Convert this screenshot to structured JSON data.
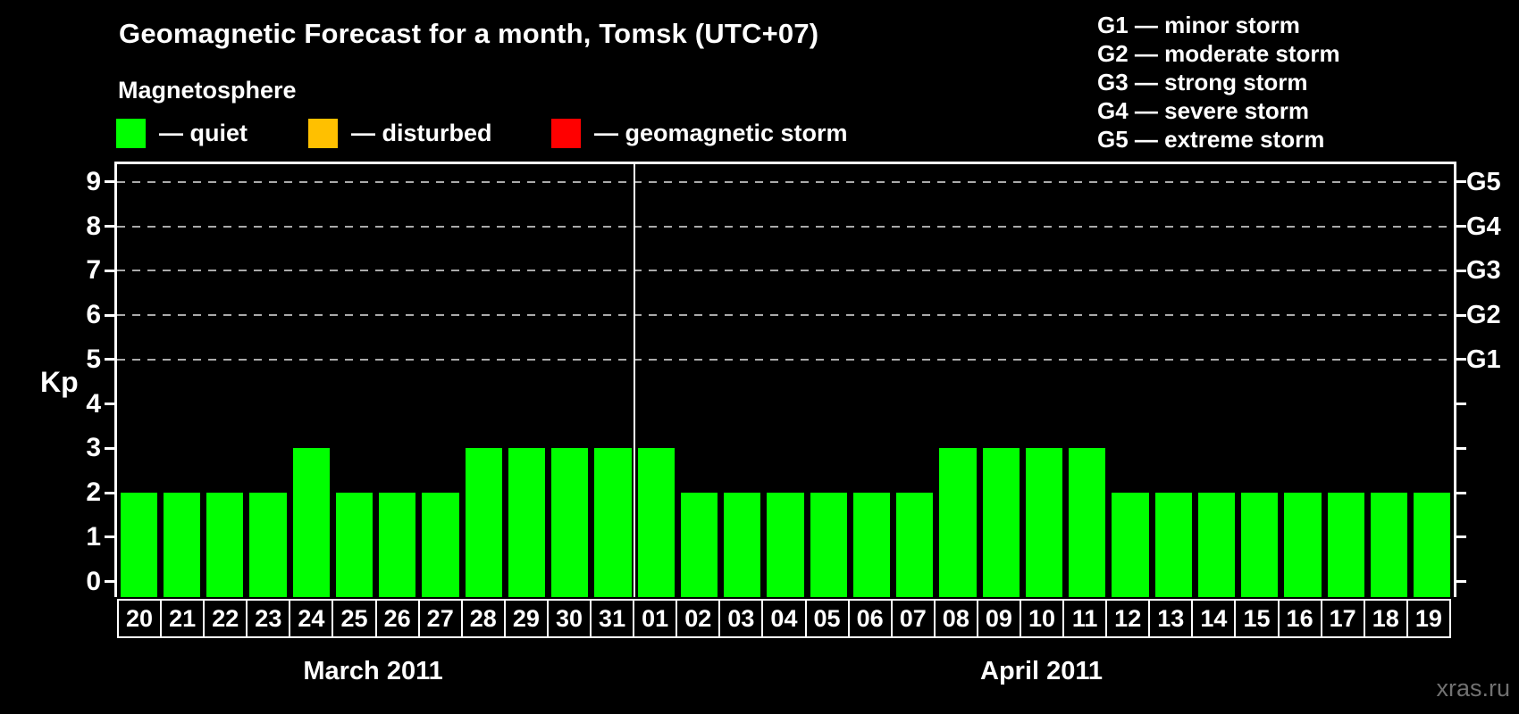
{
  "header": {
    "title": "Geomagnetic Forecast for a month, Tomsk (UTC+07)"
  },
  "legend": {
    "title": "Magnetosphere",
    "items": [
      {
        "name": "quiet",
        "label": "— quiet",
        "color": "#00ff00"
      },
      {
        "name": "disturbed",
        "label": "— disturbed",
        "color": "#ffc000"
      },
      {
        "name": "geomagnetic-storm",
        "label": "— geomagnetic storm",
        "color": "#ff0000"
      }
    ]
  },
  "g_scale_legend": {
    "items": [
      "G1 — minor storm",
      "G2 — moderate storm",
      "G3 — strong storm",
      "G4 — severe storm",
      "G5 — extreme storm"
    ]
  },
  "watermark": "xras.ru",
  "chart_data": {
    "type": "bar",
    "title": "Geomagnetic Forecast for a month, Tomsk (UTC+07)",
    "xlabel": "",
    "ylabel": "Kp",
    "ylim": [
      -0.35,
      9.4
    ],
    "y_ticks": [
      0,
      1,
      2,
      3,
      4,
      5,
      6,
      7,
      8,
      9
    ],
    "gridline_levels": [
      5,
      6,
      7,
      8,
      9
    ],
    "grid_on": true,
    "legend_position": "top-left",
    "bar_color": "#00ff00",
    "right_axis_labels": [
      {
        "kp": 5,
        "label": "G1"
      },
      {
        "kp": 6,
        "label": "G2"
      },
      {
        "kp": 7,
        "label": "G3"
      },
      {
        "kp": 8,
        "label": "G4"
      },
      {
        "kp": 9,
        "label": "G5"
      }
    ],
    "categories": [
      "20",
      "21",
      "22",
      "23",
      "24",
      "25",
      "26",
      "27",
      "28",
      "29",
      "30",
      "31",
      "01",
      "02",
      "03",
      "04",
      "05",
      "06",
      "07",
      "08",
      "09",
      "10",
      "11",
      "12",
      "13",
      "14",
      "15",
      "16",
      "17",
      "18",
      "19"
    ],
    "values": [
      2,
      2,
      2,
      2,
      3,
      2,
      2,
      2,
      3,
      3,
      3,
      3,
      3,
      2,
      2,
      2,
      2,
      2,
      2,
      3,
      3,
      3,
      3,
      2,
      2,
      2,
      2,
      2,
      2,
      2,
      2
    ],
    "separator_after_index": 11,
    "month_groups": [
      {
        "label": "March 2011",
        "start_index": 0,
        "count": 12
      },
      {
        "label": "April 2011",
        "start_index": 12,
        "count": 19
      }
    ]
  }
}
